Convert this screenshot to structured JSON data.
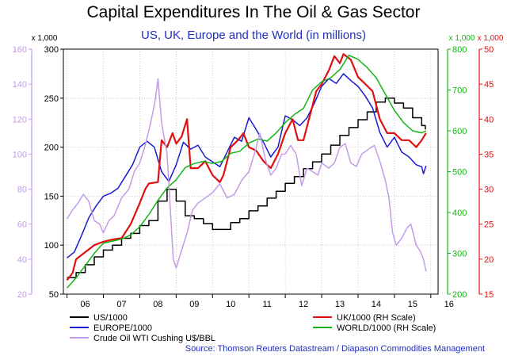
{
  "chart_data": {
    "type": "line",
    "title": "Capital Expenditures In The Oil & Gas Sector",
    "subtitle": "US, UK, Europe and the World (in millions)",
    "source": "Source: Thomson Reuters Datastream / Diapason Commodities Management",
    "grid": true,
    "legend_position": "bottom",
    "x_ticks": [
      "06",
      "07",
      "08",
      "09",
      "10",
      "11",
      "12",
      "13",
      "14",
      "15",
      "16"
    ],
    "xlim": [
      2005.9,
      2016.2
    ],
    "axes": {
      "oil": {
        "label": "",
        "ticks": [
          "20",
          "40",
          "60",
          "80",
          "100",
          "120",
          "140",
          "160"
        ],
        "ylim": [
          20,
          160
        ],
        "color": "#c39be8"
      },
      "left": {
        "label": "x 1,000",
        "ticks": [
          "50",
          "100",
          "150",
          "200",
          "250",
          "300"
        ],
        "ylim": [
          50,
          300
        ],
        "color": "#000000"
      },
      "world": {
        "label": "x 1,000",
        "ticks": [
          "200",
          "300",
          "400",
          "500",
          "600",
          "700",
          "800"
        ],
        "ylim": [
          200,
          800
        ],
        "color": "#13b513"
      },
      "uk": {
        "label": "x 1,000",
        "ticks": [
          "15",
          "20",
          "25",
          "30",
          "35",
          "40",
          "45",
          "50"
        ],
        "ylim": [
          15,
          50
        ],
        "color": "#e01010"
      }
    },
    "series": [
      {
        "name": "US/1000",
        "axis": "left",
        "color": "#000000",
        "step": true,
        "points": [
          [
            2006.0,
            67
          ],
          [
            2006.25,
            72
          ],
          [
            2006.5,
            80
          ],
          [
            2006.75,
            88
          ],
          [
            2007.0,
            95
          ],
          [
            2007.25,
            100
          ],
          [
            2007.5,
            107
          ],
          [
            2007.75,
            112
          ],
          [
            2008.0,
            120
          ],
          [
            2008.25,
            125
          ],
          [
            2008.5,
            145
          ],
          [
            2008.75,
            157
          ],
          [
            2009.0,
            145
          ],
          [
            2009.25,
            130
          ],
          [
            2009.5,
            127
          ],
          [
            2009.75,
            122
          ],
          [
            2010.0,
            116
          ],
          [
            2010.25,
            116
          ],
          [
            2010.5,
            123
          ],
          [
            2010.75,
            127
          ],
          [
            2011.0,
            135
          ],
          [
            2011.25,
            140
          ],
          [
            2011.5,
            148
          ],
          [
            2011.75,
            155
          ],
          [
            2012.0,
            163
          ],
          [
            2012.25,
            170
          ],
          [
            2012.5,
            178
          ],
          [
            2012.75,
            185
          ],
          [
            2013.0,
            193
          ],
          [
            2013.25,
            202
          ],
          [
            2013.5,
            212
          ],
          [
            2013.75,
            220
          ],
          [
            2014.0,
            228
          ],
          [
            2014.25,
            236
          ],
          [
            2014.5,
            246
          ],
          [
            2014.75,
            250
          ],
          [
            2015.0,
            245
          ],
          [
            2015.25,
            240
          ],
          [
            2015.5,
            230
          ],
          [
            2015.75,
            222
          ],
          [
            2015.85,
            218
          ]
        ]
      },
      {
        "name": "EUROPE/1000",
        "axis": "left",
        "color": "#1a1ad0",
        "step": false,
        "points": [
          [
            2006.0,
            87
          ],
          [
            2006.2,
            93
          ],
          [
            2006.4,
            110
          ],
          [
            2006.6,
            128
          ],
          [
            2006.8,
            140
          ],
          [
            2007.0,
            150
          ],
          [
            2007.2,
            153
          ],
          [
            2007.4,
            158
          ],
          [
            2007.6,
            170
          ],
          [
            2007.8,
            182
          ],
          [
            2008.0,
            200
          ],
          [
            2008.2,
            206
          ],
          [
            2008.4,
            200
          ],
          [
            2008.6,
            175
          ],
          [
            2008.8,
            165
          ],
          [
            2009.0,
            182
          ],
          [
            2009.2,
            205
          ],
          [
            2009.4,
            198
          ],
          [
            2009.6,
            202
          ],
          [
            2009.8,
            190
          ],
          [
            2010.0,
            185
          ],
          [
            2010.2,
            180
          ],
          [
            2010.4,
            195
          ],
          [
            2010.6,
            210
          ],
          [
            2010.8,
            206
          ],
          [
            2011.0,
            230
          ],
          [
            2011.2,
            218
          ],
          [
            2011.4,
            205
          ],
          [
            2011.6,
            190
          ],
          [
            2011.8,
            200
          ],
          [
            2012.0,
            232
          ],
          [
            2012.2,
            228
          ],
          [
            2012.4,
            222
          ],
          [
            2012.6,
            230
          ],
          [
            2012.8,
            245
          ],
          [
            2013.0,
            262
          ],
          [
            2013.2,
            270
          ],
          [
            2013.4,
            265
          ],
          [
            2013.6,
            275
          ],
          [
            2013.8,
            268
          ],
          [
            2014.0,
            262
          ],
          [
            2014.2,
            252
          ],
          [
            2014.4,
            240
          ],
          [
            2014.6,
            215
          ],
          [
            2014.8,
            200
          ],
          [
            2015.0,
            210
          ],
          [
            2015.2,
            195
          ],
          [
            2015.4,
            190
          ],
          [
            2015.6,
            182
          ],
          [
            2015.75,
            180
          ],
          [
            2015.8,
            173
          ],
          [
            2015.87,
            181
          ]
        ]
      },
      {
        "name": "UK/1000 (RH Scale)",
        "axis": "uk",
        "color": "#e01010",
        "step": false,
        "points": [
          [
            2006.0,
            17
          ],
          [
            2006.15,
            18
          ],
          [
            2006.25,
            20
          ],
          [
            2006.5,
            21
          ],
          [
            2006.75,
            22
          ],
          [
            2007.0,
            22.5
          ],
          [
            2007.25,
            22.8
          ],
          [
            2007.5,
            23
          ],
          [
            2007.75,
            25
          ],
          [
            2008.0,
            28
          ],
          [
            2008.15,
            30
          ],
          [
            2008.25,
            30.8
          ],
          [
            2008.5,
            31
          ],
          [
            2008.6,
            37
          ],
          [
            2008.75,
            36
          ],
          [
            2008.9,
            38
          ],
          [
            2009.0,
            36.5
          ],
          [
            2009.15,
            37.5
          ],
          [
            2009.3,
            40
          ],
          [
            2009.4,
            33
          ],
          [
            2009.6,
            33
          ],
          [
            2009.8,
            34
          ],
          [
            2010.0,
            32
          ],
          [
            2010.2,
            31
          ],
          [
            2010.3,
            32
          ],
          [
            2010.5,
            36
          ],
          [
            2010.7,
            37
          ],
          [
            2010.85,
            38
          ],
          [
            2011.0,
            36
          ],
          [
            2011.2,
            35.5
          ],
          [
            2011.4,
            34
          ],
          [
            2011.6,
            33
          ],
          [
            2011.8,
            35
          ],
          [
            2012.0,
            38
          ],
          [
            2012.2,
            40
          ],
          [
            2012.35,
            37
          ],
          [
            2012.5,
            37
          ],
          [
            2012.7,
            41
          ],
          [
            2012.85,
            44
          ],
          [
            2013.0,
            45
          ],
          [
            2013.2,
            47
          ],
          [
            2013.35,
            49
          ],
          [
            2013.5,
            48
          ],
          [
            2013.6,
            49.3
          ],
          [
            2013.8,
            48.5
          ],
          [
            2014.0,
            46
          ],
          [
            2014.2,
            45
          ],
          [
            2014.4,
            44
          ],
          [
            2014.6,
            40
          ],
          [
            2014.8,
            38
          ],
          [
            2015.0,
            38
          ],
          [
            2015.2,
            37
          ],
          [
            2015.4,
            37
          ],
          [
            2015.6,
            36
          ],
          [
            2015.75,
            37
          ],
          [
            2015.87,
            38
          ]
        ]
      },
      {
        "name": "WORLD/1000 (RH Scale)",
        "axis": "world",
        "color": "#13b513",
        "step": false,
        "points": [
          [
            2006.0,
            215
          ],
          [
            2006.25,
            240
          ],
          [
            2006.5,
            270
          ],
          [
            2006.75,
            300
          ],
          [
            2007.0,
            325
          ],
          [
            2007.25,
            330
          ],
          [
            2007.5,
            335
          ],
          [
            2007.75,
            345
          ],
          [
            2008.0,
            365
          ],
          [
            2008.25,
            395
          ],
          [
            2008.5,
            430
          ],
          [
            2008.75,
            460
          ],
          [
            2009.0,
            480
          ],
          [
            2009.25,
            510
          ],
          [
            2009.5,
            520
          ],
          [
            2009.75,
            525
          ],
          [
            2010.0,
            520
          ],
          [
            2010.25,
            525
          ],
          [
            2010.5,
            545
          ],
          [
            2010.75,
            550
          ],
          [
            2011.0,
            570
          ],
          [
            2011.25,
            580
          ],
          [
            2011.5,
            575
          ],
          [
            2011.75,
            595
          ],
          [
            2012.0,
            620
          ],
          [
            2012.25,
            640
          ],
          [
            2012.5,
            655
          ],
          [
            2012.75,
            700
          ],
          [
            2013.0,
            720
          ],
          [
            2013.25,
            730
          ],
          [
            2013.5,
            750
          ],
          [
            2013.75,
            785
          ],
          [
            2014.0,
            775
          ],
          [
            2014.25,
            755
          ],
          [
            2014.5,
            730
          ],
          [
            2014.75,
            690
          ],
          [
            2015.0,
            650
          ],
          [
            2015.25,
            620
          ],
          [
            2015.5,
            600
          ],
          [
            2015.75,
            595
          ],
          [
            2015.87,
            600
          ]
        ]
      },
      {
        "name": "Crude Oil WTI Cushing U$/BBL",
        "axis": "oil",
        "color": "#c39be8",
        "step": false,
        "points": [
          [
            2006.0,
            63
          ],
          [
            2006.15,
            68
          ],
          [
            2006.3,
            72
          ],
          [
            2006.45,
            77
          ],
          [
            2006.6,
            73
          ],
          [
            2006.75,
            62
          ],
          [
            2006.9,
            60
          ],
          [
            2007.0,
            55
          ],
          [
            2007.15,
            62
          ],
          [
            2007.3,
            65
          ],
          [
            2007.5,
            75
          ],
          [
            2007.7,
            80
          ],
          [
            2007.85,
            90
          ],
          [
            2008.0,
            95
          ],
          [
            2008.15,
            105
          ],
          [
            2008.3,
            118
          ],
          [
            2008.42,
            130
          ],
          [
            2008.5,
            143
          ],
          [
            2008.6,
            118
          ],
          [
            2008.75,
            100
          ],
          [
            2008.85,
            65
          ],
          [
            2008.92,
            40
          ],
          [
            2009.0,
            35
          ],
          [
            2009.15,
            45
          ],
          [
            2009.3,
            55
          ],
          [
            2009.45,
            68
          ],
          [
            2009.6,
            72
          ],
          [
            2009.8,
            75
          ],
          [
            2010.0,
            78
          ],
          [
            2010.2,
            83
          ],
          [
            2010.4,
            75
          ],
          [
            2010.6,
            77
          ],
          [
            2010.8,
            85
          ],
          [
            2011.0,
            90
          ],
          [
            2011.15,
            100
          ],
          [
            2011.3,
            112
          ],
          [
            2011.45,
            97
          ],
          [
            2011.6,
            88
          ],
          [
            2011.75,
            92
          ],
          [
            2011.9,
            100
          ],
          [
            2012.0,
            100
          ],
          [
            2012.15,
            105
          ],
          [
            2012.3,
            100
          ],
          [
            2012.45,
            82
          ],
          [
            2012.6,
            92
          ],
          [
            2012.75,
            90
          ],
          [
            2012.9,
            88
          ],
          [
            2013.0,
            95
          ],
          [
            2013.2,
            92
          ],
          [
            2013.35,
            95
          ],
          [
            2013.5,
            104
          ],
          [
            2013.65,
            106
          ],
          [
            2013.8,
            95
          ],
          [
            2013.95,
            93
          ],
          [
            2014.1,
            100
          ],
          [
            2014.3,
            103
          ],
          [
            2014.45,
            105
          ],
          [
            2014.6,
            96
          ],
          [
            2014.75,
            85
          ],
          [
            2014.85,
            75
          ],
          [
            2014.95,
            55
          ],
          [
            2015.05,
            48
          ],
          [
            2015.2,
            52
          ],
          [
            2015.35,
            58
          ],
          [
            2015.45,
            60
          ],
          [
            2015.6,
            48
          ],
          [
            2015.7,
            45
          ],
          [
            2015.8,
            40
          ],
          [
            2015.87,
            33
          ]
        ]
      }
    ]
  }
}
